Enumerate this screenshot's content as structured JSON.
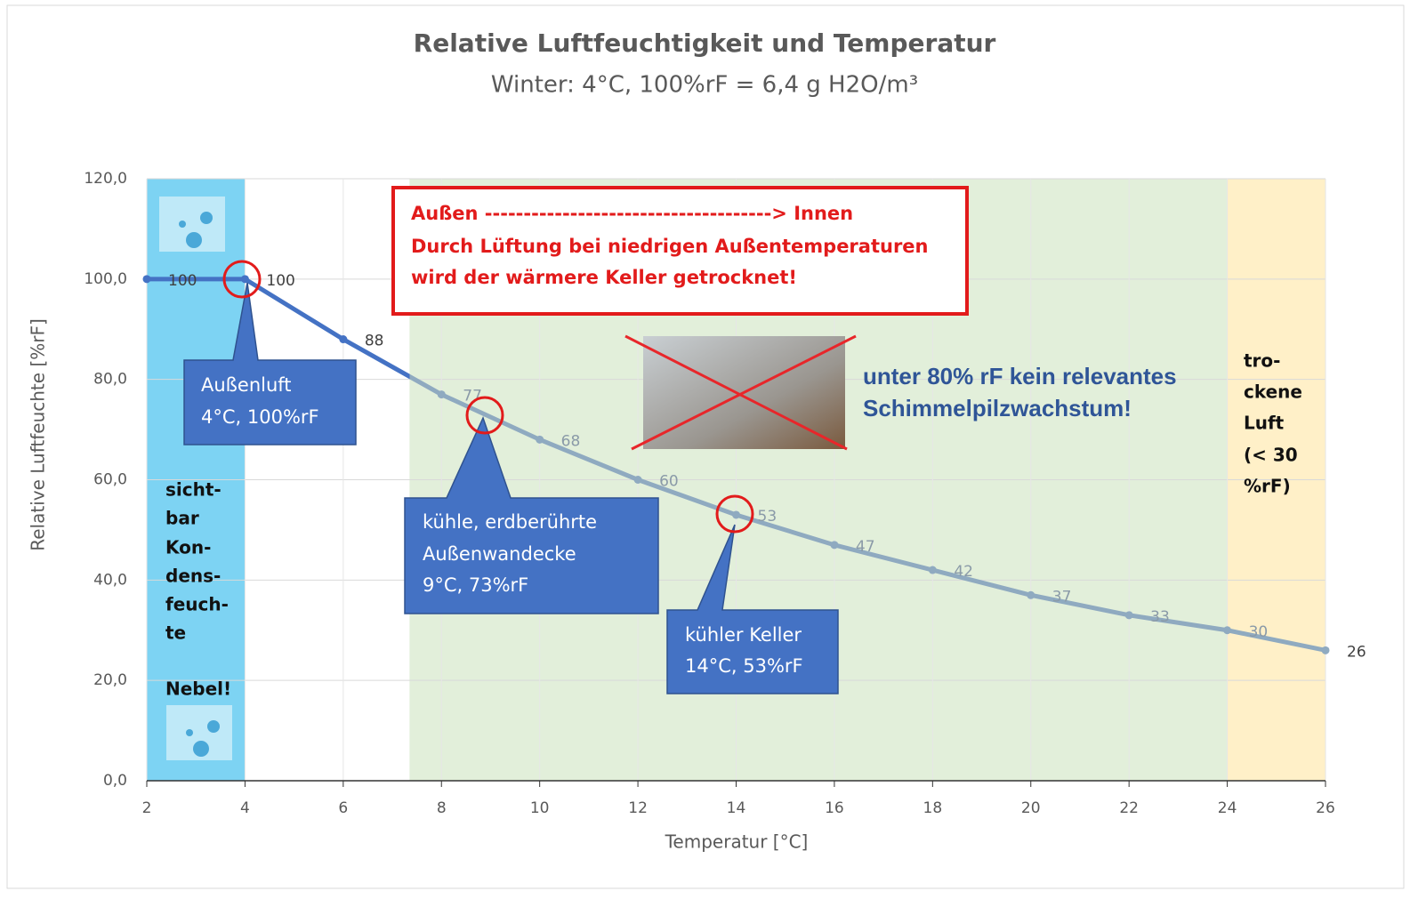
{
  "chart_data": {
    "type": "line",
    "title": "Relative Luftfeuchtigkeit und Temperatur",
    "subtitle": "Winter: 4°C, 100%rF = 6,4 g H2O/m³",
    "x_label": "Temperatur [°C]",
    "y_label": "Relative Luftfeuchte [%rF]",
    "x": [
      2,
      4,
      6,
      8,
      10,
      12,
      14,
      16,
      18,
      20,
      22,
      24,
      26
    ],
    "series": [
      {
        "color": "#4472c4",
        "color_after": "#8faac0",
        "values": [
          100,
          100,
          88,
          77,
          68,
          60,
          53,
          47,
          42,
          37,
          33,
          30,
          26
        ]
      }
    ],
    "xlim": [
      2,
      26
    ],
    "xticks": [
      2,
      4,
      6,
      8,
      10,
      12,
      14,
      16,
      18,
      20,
      22,
      24,
      26
    ],
    "ylim": [
      0,
      120
    ],
    "yticks": [
      {
        "value": 0,
        "label": "0,0"
      },
      {
        "value": 20,
        "label": "20,0"
      },
      {
        "value": 40,
        "label": "40,0"
      },
      {
        "value": 60,
        "label": "60,0"
      },
      {
        "value": 80,
        "label": "80,0"
      },
      {
        "value": 100,
        "label": "100,0"
      },
      {
        "value": 120,
        "label": "120,0"
      }
    ],
    "grid": true,
    "zones": [
      {
        "from": 2,
        "to": 4,
        "color": "#7dd3f3"
      },
      {
        "from": 7.35,
        "to": 24,
        "color": "#e2efda"
      },
      {
        "from": 24,
        "to": 26,
        "color": "#fff0c8"
      }
    ],
    "annotations": {
      "red_box": [
        "Außen -------------------------------------> Innen",
        "Durch Lüftung bei niedrigen Außentemperaturen",
        "wird der wärmere  Keller getrocknet!"
      ],
      "callout_1": [
        "Außenluft",
        "4°C, 100%rF"
      ],
      "callout_2": [
        "kühle, erdberührte",
        "Außenwandecke",
        "9°C, 73%rF"
      ],
      "callout_3": [
        "kühler Keller",
        "14°C, 53%rF"
      ],
      "mold_note": [
        "unter 80% rF kein relevantes",
        "Schimmelpilzwachstum!"
      ],
      "wet_zone": [
        "sicht-",
        "bar",
        "Kon-",
        "dens-",
        "feuch-",
        "te"
      ],
      "fog": "Nebel!",
      "dry_zone": [
        "tro-",
        "ckene",
        "Luft",
        "(< 30",
        "%rF)"
      ]
    }
  }
}
